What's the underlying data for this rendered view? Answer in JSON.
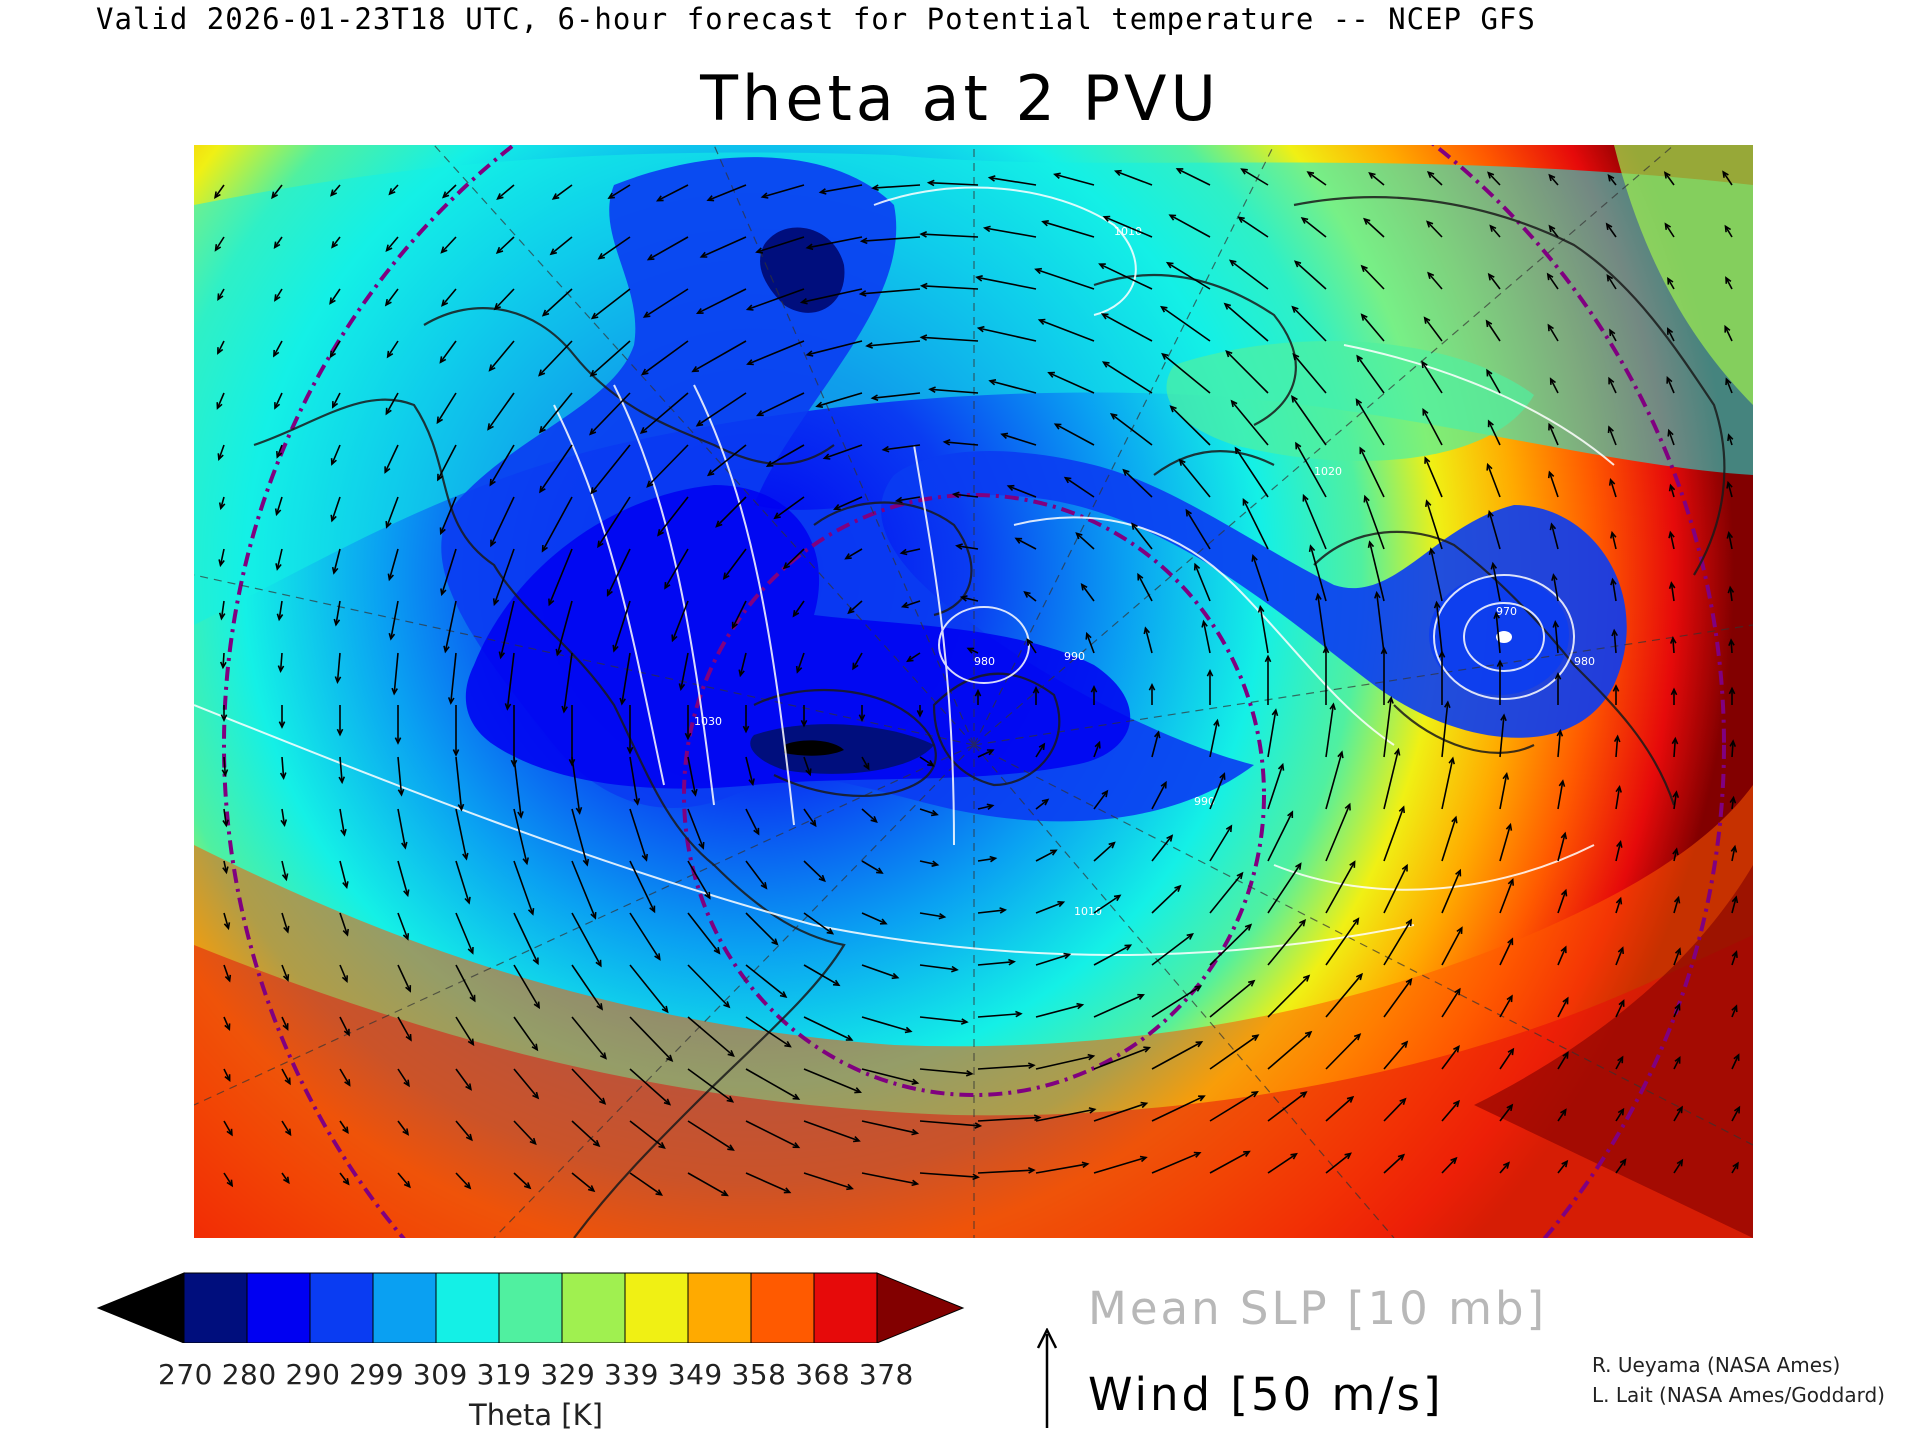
{
  "header": {
    "validity_line": "Valid 2026-01-23T18 UTC, 6-hour forecast for Potential temperature -- NCEP GFS",
    "title": "Theta at 2 PVU"
  },
  "colorbar": {
    "tick_labels": [
      "270",
      "280",
      "290",
      "299",
      "309",
      "319",
      "329",
      "339",
      "349",
      "358",
      "368",
      "378"
    ],
    "colors": [
      "#000000",
      "#000e7d",
      "#0000f2",
      "#0a3cf2",
      "#0aa0f2",
      "#14f0e6",
      "#50f0a0",
      "#a0f050",
      "#f0f014",
      "#ffaa00",
      "#ff5a00",
      "#e60a0a",
      "#820000"
    ],
    "label": "Theta [K]"
  },
  "legend": {
    "slp_label": "Mean SLP [10 mb]",
    "wind_label": "Wind [50 m/s]"
  },
  "credits": {
    "line1": "R. Ueyama (NASA Ames)",
    "line2": "L. Lait (NASA Ames/Goddard)"
  },
  "map": {
    "projection": "north-polar-stereographic",
    "background_colors": {
      "tropics_hot": "#e60a0a",
      "subtropics": "#ffaa00",
      "midlat": "#a0f050",
      "cool": "#14f0e6",
      "cold": "#0aa0f2",
      "polar_vortex": "#0a3cf2",
      "vortex_core": "#0000f2",
      "deep_core": "#000e7d"
    },
    "overlay_colors": {
      "isobars": "#ffffff",
      "coastlines": "#1a1a1a",
      "latitude_circles": "#800080",
      "wind_arrows": "#000000"
    },
    "isobar_labels": [
      "1010",
      "1020",
      "990",
      "1030",
      "990",
      "980",
      "970",
      "1010",
      "980"
    ]
  }
}
